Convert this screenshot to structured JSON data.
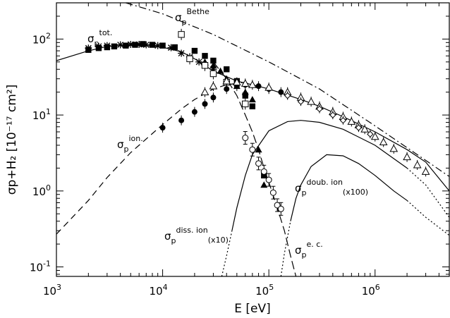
{
  "chart_data": {
    "type": "scatter",
    "xlabel": "E [eV]",
    "ylabel": "σp+H₂ [10⁻¹⁷ cm²]",
    "xscale": "log",
    "yscale": "log",
    "xlim": [
      1000,
      5000000
    ],
    "ylim": [
      0.075,
      300
    ],
    "x_ticks": [
      {
        "value": 1000,
        "base": "10",
        "exp": "3"
      },
      {
        "value": 10000,
        "base": "10",
        "exp": "4"
      },
      {
        "value": 100000,
        "base": "10",
        "exp": "5"
      },
      {
        "value": 1000000,
        "base": "10",
        "exp": "6"
      }
    ],
    "y_ticks": [
      {
        "value": 0.1,
        "base": "10",
        "exp": "-1"
      },
      {
        "value": 1,
        "base": "10",
        "exp": "0"
      },
      {
        "value": 10,
        "base": "10",
        "exp": "1"
      },
      {
        "value": 100,
        "base": "10",
        "exp": "2"
      }
    ],
    "curve_labels": [
      {
        "id": "bethe",
        "base": "σ",
        "sub": "p",
        "sup": "Bethe",
        "post": ""
      },
      {
        "id": "tot",
        "base": "σ",
        "sub": "p",
        "sup": "tot.",
        "post": ""
      },
      {
        "id": "ion",
        "base": "σ",
        "sub": "p",
        "sup": "ion.",
        "post": ""
      },
      {
        "id": "doub",
        "base": "σ",
        "sub": "p",
        "sup": "doub. ion",
        "post": "(x100)"
      },
      {
        "id": "diss",
        "base": "σ",
        "sub": "p",
        "sup": "diss. ion",
        "post": "(x10)"
      },
      {
        "id": "ec",
        "base": "σ",
        "sub": "p",
        "sup": "e. c.",
        "post": ""
      }
    ],
    "series": [
      {
        "id": "bethe",
        "style": "dash-dot",
        "x": [
          4500,
          10000,
          30000,
          100000,
          300000,
          1000000,
          5000000
        ],
        "y": [
          300,
          215,
          115,
          50,
          22,
          7.2,
          1.55
        ]
      },
      {
        "id": "tot",
        "style": "solid",
        "x": [
          1000,
          2000,
          3000,
          5000,
          7000,
          10000,
          15000,
          20000,
          30000,
          50000,
          70000,
          100000,
          200000,
          300000,
          500000,
          1000000,
          2000000,
          3000000,
          5000000
        ],
        "y": [
          52,
          70,
          80,
          83,
          82,
          78,
          68,
          55,
          38,
          28,
          25,
          22,
          16,
          13,
          9.5,
          6,
          3.5,
          2.4,
          1
        ]
      },
      {
        "id": "ion",
        "style": "dashed",
        "x": [
          1000,
          2000,
          3000,
          5000,
          10000,
          15000,
          20000,
          30000,
          40000,
          60000
        ],
        "y": [
          0.27,
          0.75,
          1.5,
          3.2,
          7.5,
          12,
          16,
          22,
          25,
          27
        ]
      },
      {
        "id": "ec",
        "style": "dash-long",
        "x": [
          30000,
          40000,
          50000,
          60000,
          70000,
          80000,
          90000,
          100000,
          120000,
          140000,
          160000,
          180000
        ],
        "y": [
          50,
          30,
          18,
          10,
          6,
          3.5,
          2,
          1.3,
          0.6,
          0.3,
          0.14,
          0.075
        ]
      },
      {
        "id": "diss",
        "style": "solid-dotted",
        "x": [
          36000,
          40000,
          45000,
          50000,
          60000,
          70000,
          100000,
          150000,
          200000,
          300000,
          500000,
          1000000,
          2000000,
          3000000,
          5000000
        ],
        "y": [
          0.075,
          0.14,
          0.3,
          0.6,
          1.6,
          3,
          6.2,
          8.2,
          8.5,
          8,
          6.5,
          4,
          2,
          1.2,
          0.45
        ],
        "dotted_before": 45000,
        "dotted_after": 2000000
      },
      {
        "id": "doub",
        "style": "solid-dotted",
        "x": [
          130000,
          140000,
          160000,
          180000,
          200000,
          250000,
          350000,
          500000,
          700000,
          1000000,
          1500000,
          2000000,
          3000000,
          5000000
        ],
        "y": [
          0.075,
          0.15,
          0.4,
          0.8,
          1.2,
          2.1,
          3,
          2.9,
          2.3,
          1.6,
          1,
          0.75,
          0.45,
          0.26
        ],
        "dotted_before": 160000,
        "dotted_after": 2000000
      }
    ],
    "points": [
      {
        "set": "filled-square",
        "x": [
          2000,
          2500,
          3000,
          3500,
          4500,
          5500,
          6500,
          8000,
          10000,
          13000,
          20000,
          25000,
          30000,
          40000,
          50000,
          60000,
          70000,
          90000
        ],
        "y": [
          72,
          76,
          78,
          80,
          82,
          84,
          86,
          84,
          82,
          78,
          70,
          60,
          52,
          40,
          28,
          18,
          13,
          1.6
        ]
      },
      {
        "set": "star",
        "x": [
          2000,
          2500,
          3000,
          4000,
          5000,
          6000,
          7000,
          9000,
          12000,
          15000,
          18000,
          22000,
          25000,
          30000
        ],
        "y": [
          76,
          80,
          82,
          84,
          85,
          85,
          84,
          82,
          77,
          65,
          58,
          50,
          45,
          40
        ]
      },
      {
        "set": "filled-triangle",
        "x": [
          25000,
          30000,
          35000,
          40000,
          50000,
          60000,
          70000,
          80000,
          90000
        ],
        "y": [
          50,
          45,
          38,
          30,
          24,
          20,
          16,
          3.5,
          1.2
        ]
      },
      {
        "set": "open-square",
        "x": [
          15000,
          18000,
          25000,
          30000,
          40000,
          60000
        ],
        "y": [
          115,
          55,
          45,
          35,
          27,
          14
        ]
      },
      {
        "set": "filled-circle",
        "x": [
          10000,
          15000,
          20000,
          25000,
          30000,
          40000,
          50000,
          60000,
          80000,
          100000,
          130000,
          150000
        ],
        "y": [
          6.8,
          8.5,
          11,
          14,
          17,
          22,
          24,
          25,
          24,
          22,
          20,
          19
        ]
      },
      {
        "set": "open-circle-eb",
        "x": [
          60000,
          70000,
          80000,
          90000,
          100000,
          110000,
          120000,
          130000
        ],
        "y": [
          5,
          3.5,
          2.3,
          1.8,
          1.4,
          0.95,
          0.65,
          0.58
        ]
      },
      {
        "set": "open-triangle",
        "x": [
          25000,
          30000,
          40000,
          50000,
          60000,
          70000,
          100000,
          150000,
          200000,
          250000,
          300000,
          400000,
          500000,
          600000,
          700000,
          800000,
          1000000,
          1200000,
          1500000,
          2000000,
          2500000,
          3000000
        ],
        "y": [
          20,
          24,
          28,
          27,
          26,
          25,
          23,
          20,
          17,
          15,
          13,
          11,
          9.5,
          8.2,
          7.4,
          6.5,
          5.2,
          4.4,
          3.6,
          2.8,
          2.2,
          1.8
        ]
      },
      {
        "set": "open-diamond",
        "x": [
          150000,
          200000,
          300000,
          400000,
          500000,
          700000,
          900000
        ],
        "y": [
          18,
          15,
          12,
          10,
          8.5,
          6.8,
          5.6
        ]
      }
    ]
  }
}
